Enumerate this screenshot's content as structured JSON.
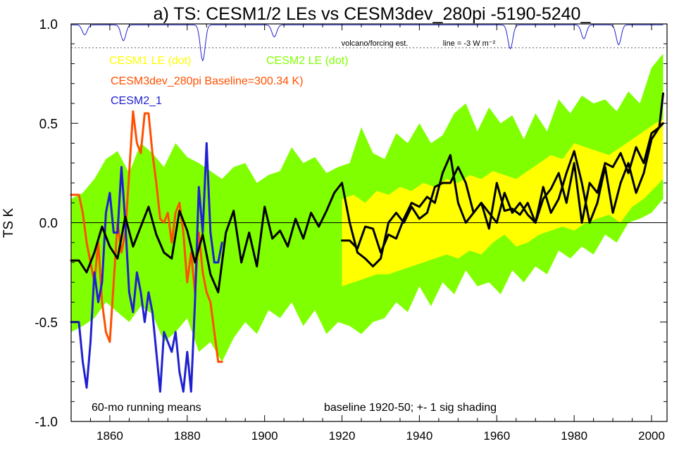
{
  "chart_data": {
    "type": "line",
    "title": "a) TS: CESM1/2 LEs vs CESM3dev_280pi -5190-5240_",
    "ylabel": "TS K",
    "xlabel": "",
    "xlim": [
      1850,
      2004
    ],
    "ylim": [
      -1.0,
      1.0
    ],
    "x_ticks": [
      1860,
      1880,
      1900,
      1920,
      1940,
      1960,
      1980,
      2000
    ],
    "y_ticks": [
      {
        "v": 1.0,
        "label": "1.0"
      },
      {
        "v": 0.5,
        "label": "0.5"
      },
      {
        "v": 0.0,
        "label": "0.0"
      },
      {
        "v": -0.5,
        "label": "-0.5"
      },
      {
        "v": -1.0,
        "label": "-1.0"
      }
    ],
    "legend": [
      {
        "label": "CESM1 LE (dot)",
        "color": "#ffff00"
      },
      {
        "label": "CESM2 LE (dot)",
        "color": "#80ff00"
      },
      {
        "label": "CESM3dev_280pi Baseline=300.34 K)",
        "color": "#ff5000"
      },
      {
        "label": "CESM2_1",
        "color": "#2020d0"
      }
    ],
    "annotations": {
      "volcano": "volcano/forcing est.",
      "line_scale": "line = -3 W m⁻²",
      "bottom_left": "60-mo running means",
      "bottom_right": "baseline 1920-50; +- 1 sig shading"
    },
    "volcano_ref_y": 0.88,
    "volcano_dips": [
      [
        1853.5,
        0.05
      ],
      [
        1863.5,
        0.08
      ],
      [
        1884,
        0.18
      ],
      [
        1902.5,
        0.06
      ],
      [
        1963.5,
        0.12
      ],
      [
        1982.5,
        0.07
      ],
      [
        1991.5,
        0.1
      ]
    ],
    "series": [
      {
        "name": "CESM2 LE",
        "kind": "band",
        "color": "#80ff00",
        "x": [
          1850,
          1853,
          1856,
          1859,
          1862,
          1865,
          1868,
          1871,
          1874,
          1877,
          1880,
          1883,
          1886,
          1889,
          1892,
          1895,
          1898,
          1901,
          1904,
          1907,
          1910,
          1913,
          1916,
          1919,
          1922,
          1925,
          1928,
          1931,
          1934,
          1937,
          1940,
          1943,
          1946,
          1949,
          1952,
          1955,
          1958,
          1961,
          1964,
          1967,
          1970,
          1973,
          1976,
          1979,
          1982,
          1985,
          1988,
          1991,
          1994,
          1997,
          2000,
          2003
        ],
        "upper": [
          0.12,
          0.15,
          0.22,
          0.32,
          0.36,
          0.25,
          0.4,
          0.35,
          0.28,
          0.4,
          0.33,
          0.3,
          0.26,
          0.22,
          0.28,
          0.3,
          0.2,
          0.24,
          0.26,
          0.38,
          0.3,
          0.33,
          0.25,
          0.28,
          0.3,
          0.48,
          0.35,
          0.32,
          0.45,
          0.4,
          0.5,
          0.4,
          0.44,
          0.55,
          0.6,
          0.46,
          0.58,
          0.5,
          0.54,
          0.42,
          0.55,
          0.46,
          0.62,
          0.55,
          0.64,
          0.6,
          0.62,
          0.56,
          0.66,
          0.6,
          0.78,
          0.85
        ],
        "lower": [
          -0.55,
          -0.52,
          -0.48,
          -0.4,
          -0.45,
          -0.5,
          -0.42,
          -0.46,
          -0.6,
          -0.55,
          -0.48,
          -0.65,
          -0.6,
          -0.7,
          -0.58,
          -0.5,
          -0.56,
          -0.44,
          -0.48,
          -0.4,
          -0.52,
          -0.44,
          -0.56,
          -0.5,
          -0.52,
          -0.56,
          -0.5,
          -0.48,
          -0.4,
          -0.45,
          -0.32,
          -0.42,
          -0.3,
          -0.36,
          -0.24,
          -0.32,
          -0.3,
          -0.36,
          -0.24,
          -0.3,
          -0.22,
          -0.26,
          -0.14,
          -0.18,
          -0.12,
          -0.16,
          -0.06,
          -0.1,
          0.0,
          0.02,
          0.05,
          0.12
        ]
      },
      {
        "name": "CESM1 LE",
        "kind": "band",
        "color": "#ffff00",
        "x": [
          1920,
          1923,
          1926,
          1929,
          1932,
          1935,
          1938,
          1941,
          1944,
          1947,
          1950,
          1953,
          1956,
          1959,
          1962,
          1965,
          1968,
          1971,
          1974,
          1977,
          1980,
          1983,
          1986,
          1989,
          1992,
          1995,
          1998,
          2001,
          2003
        ],
        "upper": [
          0.12,
          0.14,
          0.1,
          0.16,
          0.14,
          0.18,
          0.16,
          0.2,
          0.18,
          0.22,
          0.2,
          0.24,
          0.22,
          0.26,
          0.24,
          0.22,
          0.26,
          0.3,
          0.34,
          0.32,
          0.4,
          0.38,
          0.36,
          0.34,
          0.38,
          0.42,
          0.46,
          0.5,
          0.52
        ],
        "lower": [
          -0.32,
          -0.3,
          -0.28,
          -0.26,
          -0.26,
          -0.24,
          -0.22,
          -0.2,
          -0.18,
          -0.16,
          -0.18,
          -0.14,
          -0.16,
          -0.1,
          -0.06,
          -0.12,
          -0.1,
          -0.06,
          -0.04,
          -0.02,
          -0.04,
          0.0,
          0.02,
          0.04,
          0.0,
          0.08,
          0.12,
          0.18,
          0.22
        ]
      },
      {
        "name": "CESM3dev_280pi",
        "kind": "line",
        "color": "#ff5000",
        "x": [
          1850,
          1852,
          1853,
          1854,
          1856,
          1857,
          1858,
          1859,
          1860,
          1861,
          1862,
          1863,
          1864,
          1865,
          1866,
          1867,
          1868,
          1869,
          1870,
          1871,
          1872,
          1873,
          1874,
          1875,
          1876,
          1877,
          1878,
          1879,
          1880,
          1881,
          1882,
          1883,
          1884,
          1885,
          1886,
          1887,
          1888,
          1889
        ],
        "y": [
          0.14,
          0.14,
          0.05,
          -0.1,
          -0.3,
          -0.1,
          -0.4,
          -0.55,
          -0.6,
          -0.3,
          0.0,
          -0.15,
          -0.05,
          0.25,
          0.56,
          0.4,
          0.35,
          0.55,
          0.55,
          0.35,
          0.2,
          0.02,
          0.0,
          0.05,
          -0.1,
          0.05,
          0.1,
          -0.05,
          -0.3,
          -0.15,
          -0.35,
          -0.05,
          -0.25,
          -0.35,
          -0.4,
          -0.55,
          -0.7,
          -0.7
        ]
      },
      {
        "name": "CESM2_1",
        "kind": "line",
        "color": "#2020d0",
        "x": [
          1850,
          1852,
          1853,
          1854,
          1855,
          1856,
          1857,
          1858,
          1859,
          1860,
          1861,
          1862,
          1863,
          1864,
          1865,
          1866,
          1867,
          1868,
          1869,
          1870,
          1871,
          1872,
          1873,
          1874,
          1875,
          1876,
          1877,
          1878,
          1879,
          1880,
          1881,
          1882,
          1883,
          1884,
          1885,
          1886,
          1887,
          1888,
          1889
        ],
        "y": [
          -0.5,
          -0.5,
          -0.7,
          -0.83,
          -0.6,
          -0.25,
          -0.4,
          -0.3,
          0.05,
          0.15,
          -0.05,
          -0.05,
          0.28,
          0.0,
          -0.35,
          -0.45,
          -0.25,
          -0.35,
          -0.5,
          -0.35,
          -0.45,
          -0.65,
          -0.85,
          -0.55,
          -0.6,
          -0.65,
          -0.55,
          -0.75,
          -0.85,
          -0.65,
          -0.85,
          -0.4,
          0.18,
          -0.05,
          0.4,
          -0.05,
          -0.2,
          -0.2,
          -0.1
        ]
      },
      {
        "name": "",
        "kind": "line",
        "color": "#000000",
        "x": [
          1850,
          1852,
          1853,
          1854,
          1856,
          1858,
          1860,
          1862,
          1864,
          1866,
          1868,
          1870,
          1872,
          1874,
          1876,
          1878,
          1880,
          1882,
          1884,
          1886,
          1888,
          1890,
          1892,
          1894,
          1896,
          1898,
          1900,
          1902,
          1904,
          1906,
          1908,
          1910,
          1912,
          1914,
          1916,
          1918,
          1920
        ],
        "y": [
          -0.19,
          -0.19,
          -0.22,
          -0.25,
          -0.15,
          -0.02,
          -0.12,
          -0.18,
          0.03,
          -0.12,
          -0.02,
          0.08,
          -0.06,
          -0.15,
          -0.18,
          0.06,
          -0.04,
          -0.2,
          -0.06,
          -0.26,
          -0.35,
          -0.05,
          0.06,
          -0.2,
          -0.05,
          -0.22,
          0.08,
          -0.08,
          -0.04,
          -0.12,
          0.02,
          -0.08,
          0.05,
          -0.02,
          0.06,
          0.15,
          0.2
        ]
      },
      {
        "name": "",
        "kind": "line",
        "color": "#000000",
        "x": [
          1920,
          1922,
          1924,
          1926,
          1928,
          1930,
          1932,
          1934,
          1936,
          1938,
          1940,
          1942,
          1944,
          1946,
          1948,
          1950,
          1952,
          1954,
          1956,
          1958,
          1960,
          1962,
          1964,
          1966,
          1968,
          1970,
          1972,
          1974,
          1976,
          1978,
          1980,
          1982,
          1984,
          1986,
          1988,
          1990,
          1992,
          1994,
          1996,
          1998,
          2000,
          2002,
          2003
        ],
        "y": [
          -0.09,
          -0.09,
          -0.13,
          -0.02,
          -0.03,
          -0.15,
          -0.06,
          -0.08,
          0.02,
          0.1,
          0.08,
          0.13,
          0.1,
          0.25,
          0.34,
          0.1,
          0.0,
          0.05,
          0.1,
          -0.03,
          0.2,
          0.06,
          0.07,
          0.04,
          0.1,
          0.0,
          0.12,
          0.17,
          0.25,
          0.1,
          0.3,
          0.0,
          0.2,
          0.15,
          0.3,
          0.28,
          0.35,
          0.25,
          0.38,
          0.3,
          0.45,
          0.48,
          0.65
        ]
      },
      {
        "name": "",
        "kind": "line",
        "color": "#000000",
        "x": [
          1920,
          1922,
          1924,
          1926,
          1928,
          1930,
          1932,
          1934,
          1936,
          1938,
          1940,
          1942,
          1944,
          1946,
          1948,
          1950,
          1952,
          1954,
          1956,
          1958,
          1960,
          1962,
          1964,
          1966,
          1968,
          1970,
          1972,
          1974,
          1976,
          1978,
          1980,
          1982,
          1984,
          1986,
          1988,
          1990,
          1992,
          1994,
          1996,
          1998,
          2000,
          2002,
          2003
        ],
        "y": [
          0.2,
          0.0,
          -0.15,
          -0.18,
          -0.22,
          -0.18,
          0.0,
          0.05,
          0.0,
          0.08,
          0.02,
          0.05,
          0.18,
          0.2,
          0.2,
          0.28,
          0.2,
          0.05,
          0.1,
          0.05,
          0.0,
          0.15,
          0.05,
          0.1,
          0.04,
          0.0,
          0.18,
          0.05,
          0.12,
          0.25,
          0.36,
          0.2,
          0.0,
          0.1,
          0.28,
          0.05,
          0.2,
          0.3,
          0.15,
          0.25,
          0.42,
          0.48,
          0.5
        ]
      }
    ]
  }
}
